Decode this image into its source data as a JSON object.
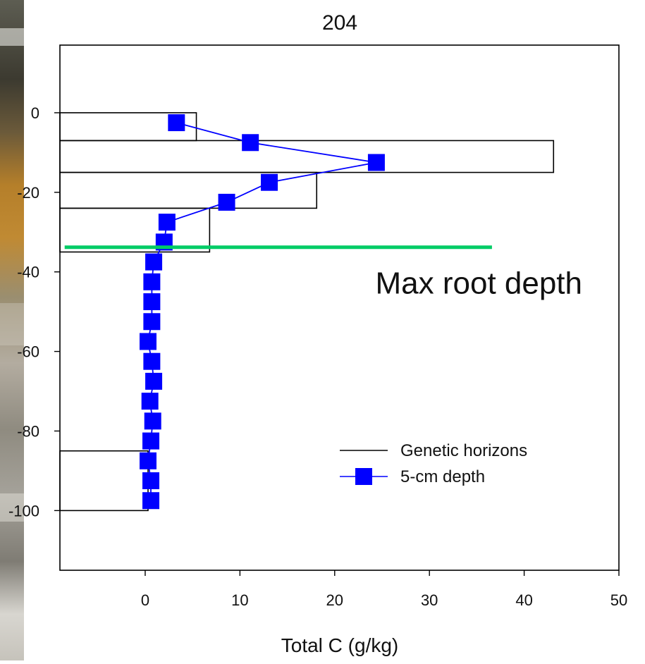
{
  "chart_data": {
    "type": "line",
    "title": "204",
    "xlabel": "Total C (g/kg)",
    "ylabel": "",
    "xlim": [
      -9,
      50
    ],
    "ylim": [
      -115,
      17
    ],
    "x_ticks": [
      0,
      10,
      20,
      30,
      40,
      50
    ],
    "x_tick_labels": [
      "0",
      "10",
      "20",
      "30",
      "40",
      "50"
    ],
    "y_ticks": [
      0,
      -20,
      -40,
      -60,
      -80,
      -100
    ],
    "y_tick_labels": [
      "0",
      "-20",
      "-40",
      "-60",
      "-80",
      "-100"
    ],
    "grid": false,
    "legend_position": "lower-right",
    "series": [
      {
        "name": "Genetic horizons",
        "kind": "step-bars",
        "color": "#000000",
        "horizons": [
          {
            "top": 0,
            "bottom": -7,
            "value": 5.4
          },
          {
            "top": -7,
            "bottom": -15,
            "value": 43.1
          },
          {
            "top": -15,
            "bottom": -24,
            "value": 18.1
          },
          {
            "top": -24,
            "bottom": -35,
            "value": 6.8
          },
          {
            "top": -85,
            "bottom": -100,
            "value": 0.3
          }
        ]
      },
      {
        "name": "5-cm depth",
        "kind": "line-markers",
        "color": "#0000ff",
        "marker": "square",
        "x": [
          3.3,
          11.1,
          24.4,
          13.1,
          8.6,
          2.3,
          2.0,
          0.9,
          0.7,
          0.7,
          0.7,
          0.3,
          0.7,
          0.9,
          0.5,
          0.8,
          0.6,
          0.3,
          0.6,
          0.6
        ],
        "y": [
          -2.5,
          -7.5,
          -12.5,
          -17.5,
          -22.5,
          -27.5,
          -32.5,
          -37.5,
          -42.5,
          -47.5,
          -52.5,
          -57.5,
          -62.5,
          -67.5,
          -72.5,
          -77.5,
          -82.5,
          -87.5,
          -92.5,
          -97.5
        ]
      }
    ],
    "annotations": [
      {
        "text": "Max root depth",
        "type": "horizontal-line",
        "y": -33.8,
        "x_from": -8.5,
        "x_to": 36.6,
        "color": "#00cc66"
      }
    ]
  }
}
